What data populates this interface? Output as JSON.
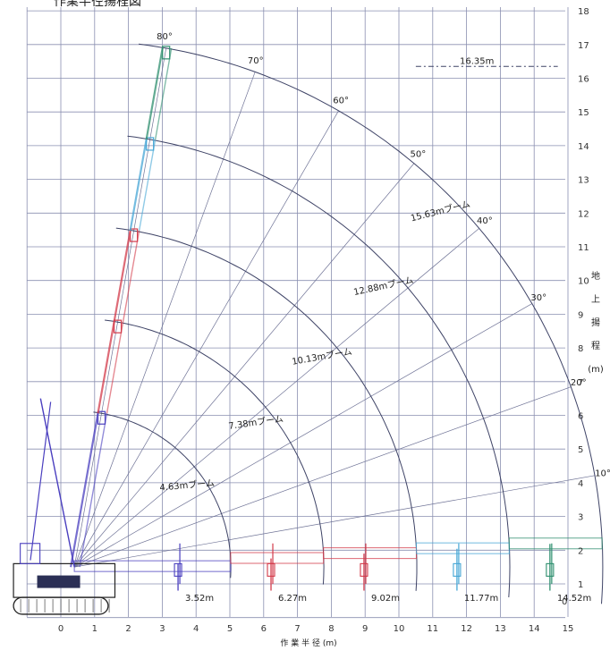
{
  "chart_data": {
    "type": "line",
    "title": "作業半径揚程図",
    "xlabel": "作 業 半 径 (m)",
    "ylabel": "地 上 揚 程 (m)",
    "xlim": [
      -1.5,
      15.5
    ],
    "ylim": [
      -0.3,
      18
    ],
    "x_ticks": [
      "0",
      "1",
      "2",
      "3",
      "4",
      "5",
      "6",
      "7",
      "8",
      "9",
      "10",
      "11",
      "12",
      "13",
      "14",
      "15"
    ],
    "y_ticks": [
      "1",
      "2",
      "3",
      "4",
      "5",
      "6",
      "7",
      "8",
      "9",
      "10",
      "11",
      "12",
      "13",
      "14",
      "15",
      "16",
      "17",
      "18"
    ],
    "y_zero_tick": "0",
    "grid": true,
    "boom_pivot": {
      "x": 0.4,
      "y": 1.5
    },
    "booms": [
      {
        "name": "4.63mブーム",
        "length": 4.63,
        "max_radius_label": "3.52m",
        "max_radius": 3.52,
        "color": "#4a3fbf"
      },
      {
        "name": "7.38mブーム",
        "length": 7.38,
        "max_radius_label": "6.27m",
        "max_radius": 6.27,
        "color": "#d33a4a"
      },
      {
        "name": "10.13mブーム",
        "length": 10.13,
        "max_radius_label": "9.02m",
        "max_radius": 9.02,
        "color": "#d33a4a"
      },
      {
        "name": "12.88mブーム",
        "length": 12.88,
        "max_radius_label": "11.77m",
        "max_radius": 11.77,
        "color": "#45a6d6"
      },
      {
        "name": "15.63mブーム",
        "length": 15.63,
        "max_radius_label": "14.52m",
        "max_radius": 14.52,
        "color": "#2f8f6f"
      }
    ],
    "angles": [
      {
        "label": "10°",
        "deg": 10
      },
      {
        "label": "20°",
        "deg": 20
      },
      {
        "label": "30°",
        "deg": 30
      },
      {
        "label": "40°",
        "deg": 40
      },
      {
        "label": "50°",
        "deg": 50
      },
      {
        "label": "60°",
        "deg": 60
      },
      {
        "label": "70°",
        "deg": 70
      },
      {
        "label": "80°",
        "deg": 80
      }
    ],
    "max_height_label": "16.35m",
    "max_height": 16.35
  }
}
